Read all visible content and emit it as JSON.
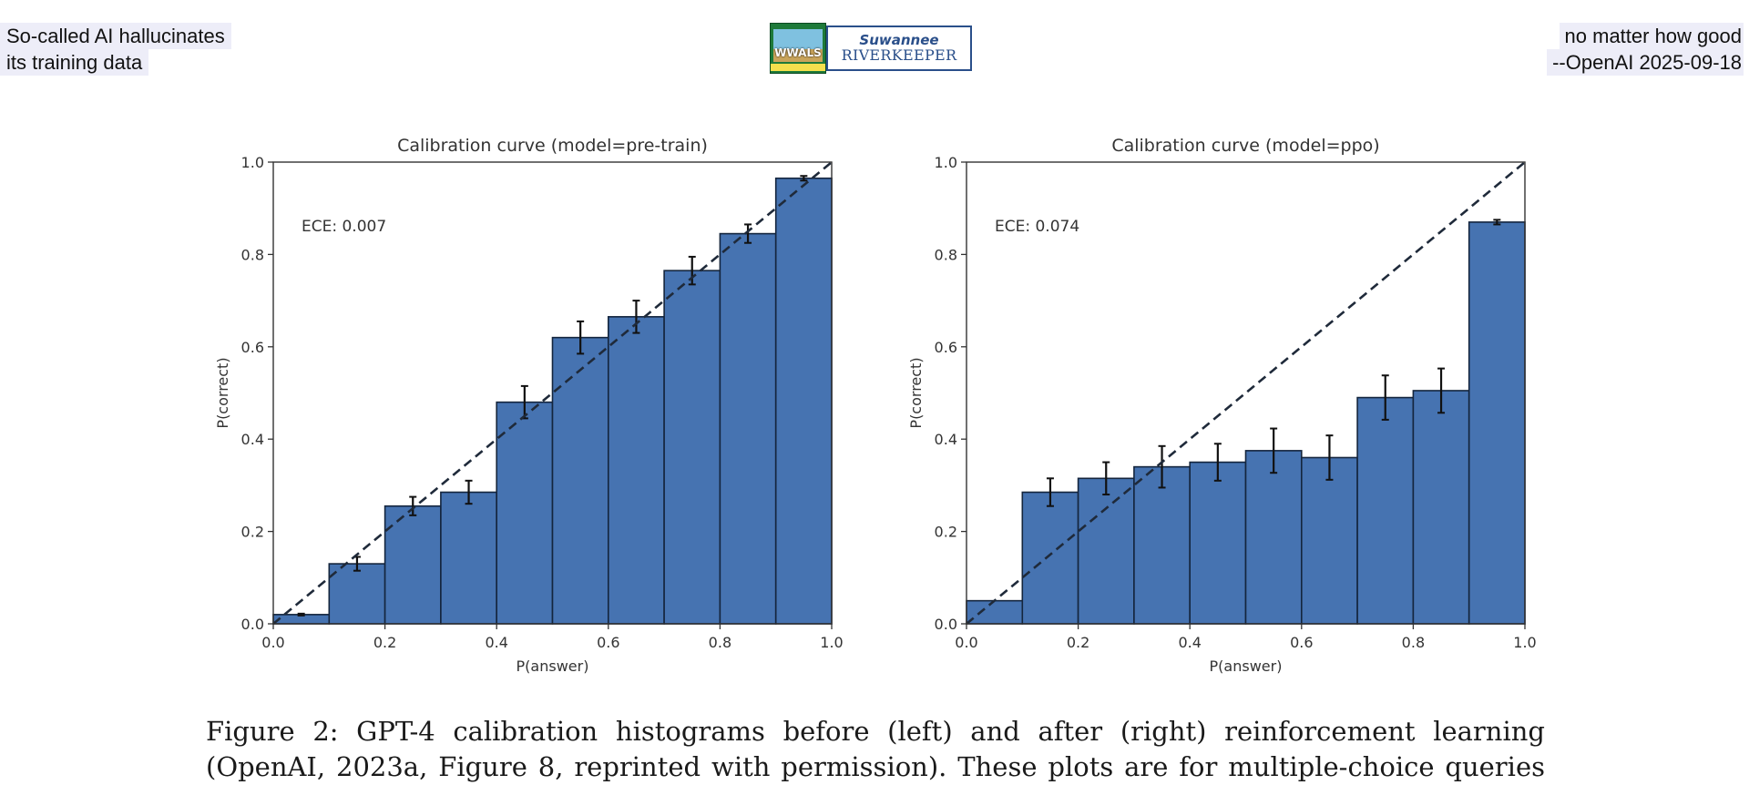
{
  "header": {
    "left_lines": [
      "So-called AI hallucinates",
      "its training data"
    ],
    "right_lines": [
      "no matter how good",
      "--OpenAI 2025-09-18"
    ],
    "logo": {
      "left_text": "WWALS",
      "right_line1": "Suwannee",
      "right_line2": "RIVERKEEPER"
    }
  },
  "caption": {
    "lines": [
      "Figure 2:  GPT-4 calibration histograms before (left) and after (right) reinforcement learning",
      "(OpenAI, 2023a, Figure 8, reprinted with permission). These plots are for multiple-choice queries"
    ]
  },
  "colors": {
    "bar": "#4673b1",
    "bar_edge": "#14253d",
    "diagonal": "#1f2a3a",
    "axis": "#333333"
  },
  "chart_data": [
    {
      "type": "bar",
      "title": "Calibration curve (model=pre-train)",
      "xlabel": "P(answer)",
      "ylabel": "P(correct)",
      "annotation": "ECE: 0.007",
      "xlim": [
        0,
        1
      ],
      "ylim": [
        0,
        1
      ],
      "xticks": [
        "0.0",
        "0.2",
        "0.4",
        "0.6",
        "0.8",
        "1.0"
      ],
      "yticks": [
        "0.0",
        "0.2",
        "0.4",
        "0.6",
        "0.8",
        "1.0"
      ],
      "bins": [
        [
          0.0,
          0.1
        ],
        [
          0.1,
          0.2
        ],
        [
          0.2,
          0.3
        ],
        [
          0.3,
          0.4
        ],
        [
          0.4,
          0.5
        ],
        [
          0.5,
          0.6
        ],
        [
          0.6,
          0.7
        ],
        [
          0.7,
          0.8
        ],
        [
          0.8,
          0.9
        ],
        [
          0.9,
          1.0
        ]
      ],
      "values": [
        0.02,
        0.13,
        0.255,
        0.285,
        0.48,
        0.62,
        0.665,
        0.765,
        0.845,
        0.965
      ],
      "error": [
        0.002,
        0.015,
        0.02,
        0.025,
        0.035,
        0.035,
        0.035,
        0.03,
        0.02,
        0.005
      ],
      "diagonal": "dashed y=x",
      "grid": false
    },
    {
      "type": "bar",
      "title": "Calibration curve (model=ppo)",
      "xlabel": "P(answer)",
      "ylabel": "P(correct)",
      "annotation": "ECE: 0.074",
      "xlim": [
        0,
        1
      ],
      "ylim": [
        0,
        1
      ],
      "xticks": [
        "0.0",
        "0.2",
        "0.4",
        "0.6",
        "0.8",
        "1.0"
      ],
      "yticks": [
        "0.0",
        "0.2",
        "0.4",
        "0.6",
        "0.8",
        "1.0"
      ],
      "bins": [
        [
          0.0,
          0.1
        ],
        [
          0.1,
          0.2
        ],
        [
          0.2,
          0.3
        ],
        [
          0.3,
          0.4
        ],
        [
          0.4,
          0.5
        ],
        [
          0.5,
          0.6
        ],
        [
          0.6,
          0.7
        ],
        [
          0.7,
          0.8
        ],
        [
          0.8,
          0.9
        ],
        [
          0.9,
          1.0
        ]
      ],
      "values": [
        0.05,
        0.285,
        0.315,
        0.34,
        0.35,
        0.375,
        0.36,
        0.49,
        0.505,
        0.87
      ],
      "error": [
        0.0,
        0.03,
        0.035,
        0.045,
        0.04,
        0.048,
        0.048,
        0.048,
        0.048,
        0.005
      ],
      "diagonal": "dashed y=x",
      "grid": false
    }
  ]
}
